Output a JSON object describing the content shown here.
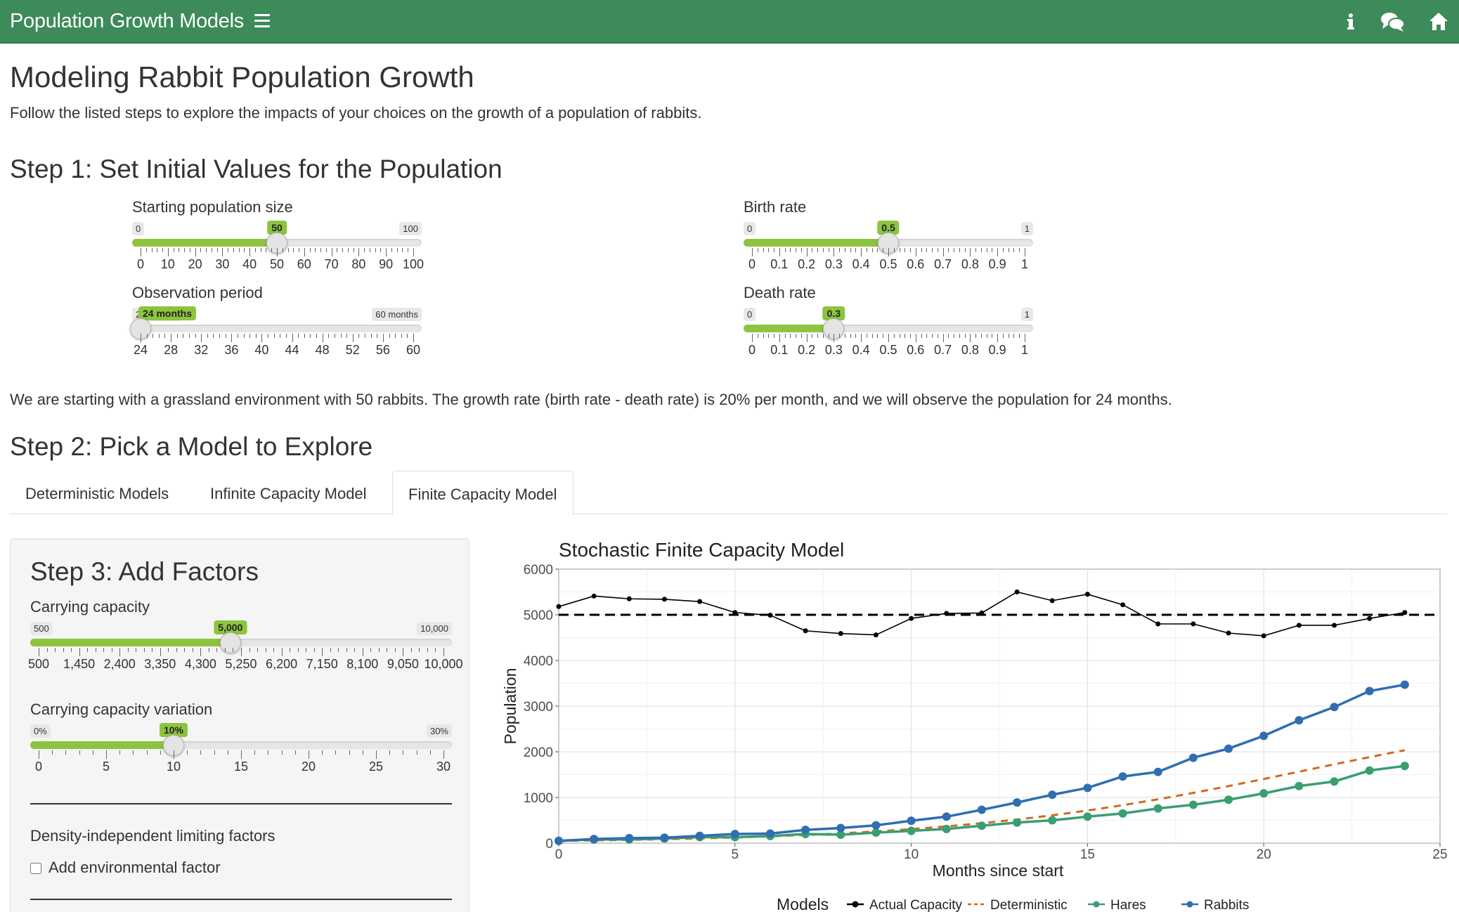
{
  "header": {
    "app_title": "Population Growth Models",
    "icons": [
      "menu-icon",
      "info-icon",
      "comments-icon",
      "home-icon"
    ],
    "brand_color": "#3d8a5a"
  },
  "page_title": "Modeling Rabbit Population Growth",
  "intro": "Follow the listed steps to explore the impacts of your choices on the growth of a population of rabbits.",
  "step1": {
    "heading": "Step 1: Set Initial Values for the Population",
    "sliders": [
      {
        "id": "start-pop",
        "label": "Starting population size",
        "min": 0,
        "max": 100,
        "value": 50,
        "min_label": "0",
        "max_label": "100",
        "value_label": "50",
        "ticks": [
          "0",
          "10",
          "20",
          "30",
          "40",
          "50",
          "60",
          "70",
          "80",
          "90",
          "100"
        ]
      },
      {
        "id": "birth",
        "label": "Birth rate",
        "min": 0,
        "max": 1,
        "value": 0.5,
        "min_label": "0",
        "max_label": "1",
        "value_label": "0.5",
        "ticks": [
          "0",
          "0.1",
          "0.2",
          "0.3",
          "0.4",
          "0.5",
          "0.6",
          "0.7",
          "0.8",
          "0.9",
          "1"
        ]
      },
      {
        "id": "obs",
        "label": "Observation period",
        "min": 24,
        "max": 60,
        "value": 24,
        "min_label": "24 months",
        "max_label": "60 months",
        "value_label": "24 months",
        "ticks": [
          "24",
          "28",
          "32",
          "36",
          "40",
          "44",
          "48",
          "52",
          "56",
          "60"
        ]
      },
      {
        "id": "death",
        "label": "Death rate",
        "min": 0,
        "max": 1,
        "value": 0.3,
        "min_label": "0",
        "max_label": "1",
        "value_label": "0.3",
        "ticks": [
          "0",
          "0.1",
          "0.2",
          "0.3",
          "0.4",
          "0.5",
          "0.6",
          "0.7",
          "0.8",
          "0.9",
          "1"
        ]
      }
    ]
  },
  "summary": "We are starting with a grassland environment with 50 rabbits. The growth rate (birth rate - death rate) is 20% per month, and we will observe the population for 24 months.",
  "step2": {
    "heading": "Step 2: Pick a Model to Explore",
    "tabs": [
      "Deterministic Models",
      "Infinite Capacity Model",
      "Finite Capacity Model"
    ],
    "active_tab": "Finite Capacity Model"
  },
  "step3": {
    "heading": "Step 3: Add Factors",
    "sliders": [
      {
        "id": "cap",
        "label": "Carrying capacity",
        "min": 500,
        "max": 10000,
        "value": 5000,
        "min_label": "500",
        "max_label": "10,000",
        "value_label": "5,000",
        "ticks": [
          "500",
          "1,450",
          "2,400",
          "3,350",
          "4,300",
          "5,250",
          "6,200",
          "7,150",
          "8,100",
          "9,050",
          "10,000"
        ]
      },
      {
        "id": "capvar",
        "label": "Carrying capacity variation",
        "min": 0,
        "max": 30,
        "value": 10,
        "min_label": "0%",
        "max_label": "30%",
        "value_label": "10%",
        "ticks": [
          "0",
          "5",
          "10",
          "15",
          "20",
          "25",
          "30"
        ]
      }
    ],
    "density_label": "Density-independent limiting factors",
    "checkbox_label": "Add environmental factor",
    "checkbox_checked": false
  },
  "chart_data": {
    "type": "line",
    "title": "Stochastic Finite Capacity Model",
    "xlabel": "Months since start",
    "ylabel": "Population",
    "xlim": [
      0,
      25
    ],
    "ylim": [
      0,
      6000
    ],
    "x_ticks": [
      "0",
      "5",
      "10",
      "15",
      "20",
      "25"
    ],
    "y_ticks": [
      "0",
      "1000",
      "2000",
      "3000",
      "4000",
      "5000",
      "6000"
    ],
    "grid": true,
    "legend_title": "Models",
    "legend_position": "bottom",
    "capacity_line": 5000,
    "x": [
      0,
      1,
      2,
      3,
      4,
      5,
      6,
      7,
      8,
      9,
      10,
      11,
      12,
      13,
      14,
      15,
      16,
      17,
      18,
      19,
      20,
      21,
      22,
      23,
      24
    ],
    "series": [
      {
        "name": "Actual Capacity",
        "color": "#000000",
        "style": "solid-small-points",
        "values": [
          5180,
          5410,
          5350,
          5340,
          5290,
          5050,
          4990,
          4650,
          4590,
          4560,
          4920,
          5030,
          5040,
          5500,
          5310,
          5450,
          5220,
          4800,
          4800,
          4600,
          4540,
          4770,
          4770,
          4920,
          5050
        ]
      },
      {
        "name": "Deterministic",
        "color": "#d2691e",
        "style": "dashed",
        "values": [
          50,
          60,
          72,
          86,
          104,
          124,
          149,
          179,
          214,
          257,
          307,
          367,
          436,
          517,
          609,
          714,
          831,
          960,
          1100,
          1249,
          1405,
          1565,
          1726,
          1884,
          2035
        ]
      },
      {
        "name": "Hares",
        "color": "#3a9e72",
        "style": "solid-points",
        "values": [
          50,
          80,
          80,
          100,
          130,
          130,
          155,
          200,
          185,
          230,
          270,
          310,
          380,
          450,
          500,
          580,
          650,
          760,
          840,
          950,
          1090,
          1250,
          1350,
          1590,
          1690
        ]
      },
      {
        "name": "Rabbits",
        "color": "#2f6eb0",
        "style": "solid-points",
        "values": [
          50,
          90,
          110,
          120,
          160,
          200,
          210,
          290,
          330,
          390,
          490,
          580,
          730,
          890,
          1060,
          1210,
          1460,
          1560,
          1870,
          2070,
          2350,
          2690,
          2980,
          3330,
          3470
        ]
      }
    ]
  }
}
